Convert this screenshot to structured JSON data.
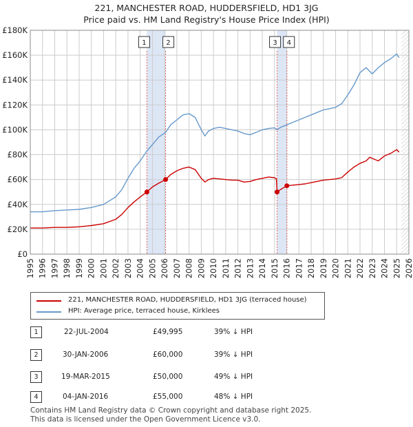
{
  "header": {
    "title_line1": "221, MANCHESTER ROAD, HUDDERSFIELD, HD1 3JG",
    "title_line2": "Price paid vs. HM Land Registry's House Price Index (HPI)"
  },
  "colors": {
    "property": "#cc0000",
    "hpi": "#6699cc",
    "shade": "#dde6f5",
    "marker_line": "#e06060",
    "grid": "#cccccc"
  },
  "chart_data": {
    "type": "line",
    "title": "Price paid vs. HM Land Registry's House Price Index (HPI)",
    "xlabel": "",
    "ylabel": "",
    "xlim": [
      1995,
      2026
    ],
    "ylim": [
      0,
      180000
    ],
    "grid": true,
    "x_ticks": [
      1995,
      1996,
      1997,
      1998,
      1999,
      2000,
      2001,
      2002,
      2003,
      2004,
      2005,
      2006,
      2007,
      2008,
      2009,
      2010,
      2011,
      2012,
      2013,
      2014,
      2015,
      2016,
      2017,
      2018,
      2019,
      2020,
      2021,
      2022,
      2023,
      2024,
      2025,
      2026
    ],
    "y_ticks": [
      {
        "value": 0,
        "label": "£0"
      },
      {
        "value": 20000,
        "label": "£20K"
      },
      {
        "value": 40000,
        "label": "£40K"
      },
      {
        "value": 60000,
        "label": "£60K"
      },
      {
        "value": 80000,
        "label": "£80K"
      },
      {
        "value": 100000,
        "label": "£100K"
      },
      {
        "value": 120000,
        "label": "£120K"
      },
      {
        "value": 140000,
        "label": "£140K"
      },
      {
        "value": 160000,
        "label": "£160K"
      },
      {
        "value": 180000,
        "label": "£180K"
      }
    ],
    "shaded_ranges": [
      [
        2004.55,
        2006.08
      ],
      [
        2015.21,
        2016.01
      ]
    ],
    "future_hatch_from": 2025.4,
    "series": [
      {
        "name": "221, MANCHESTER ROAD, HUDDERSFIELD, HD1 3JG (terraced house)",
        "x": [
          1995.0,
          1996.0,
          1997.0,
          1998.0,
          1999.0,
          2000.0,
          2001.0,
          2002.0,
          2002.5,
          2003.0,
          2003.5,
          2004.0,
          2004.55,
          2005.0,
          2005.5,
          2006.08,
          2006.5,
          2007.0,
          2007.5,
          2008.0,
          2008.5,
          2009.0,
          2009.3,
          2009.6,
          2010.0,
          2010.5,
          2011.0,
          2011.5,
          2012.0,
          2012.5,
          2013.0,
          2013.5,
          2014.0,
          2014.5,
          2015.0,
          2015.15,
          2015.21,
          2015.5,
          2016.01,
          2016.5,
          2017.0,
          2017.5,
          2018.0,
          2018.5,
          2019.0,
          2019.5,
          2020.0,
          2020.5,
          2021.0,
          2021.5,
          2022.0,
          2022.5,
          2022.8,
          2023.0,
          2023.5,
          2024.0,
          2024.5,
          2025.0,
          2025.2
        ],
        "y": [
          21000,
          21000,
          21500,
          21500,
          22000,
          23000,
          24500,
          28000,
          32000,
          37500,
          42000,
          46000,
          49995,
          54000,
          57000,
          60000,
          64000,
          67000,
          69000,
          70000,
          68000,
          61000,
          58000,
          60000,
          61000,
          60500,
          60000,
          59500,
          59500,
          58000,
          58500,
          60000,
          61000,
          62000,
          61500,
          60500,
          50000,
          52000,
          55000,
          55500,
          56000,
          56500,
          57500,
          58500,
          59500,
          60000,
          60500,
          61500,
          66000,
          70000,
          73000,
          75000,
          78000,
          77000,
          75000,
          79000,
          81000,
          84000,
          82000
        ]
      },
      {
        "name": "HPI: Average price, terraced house, Kirklees",
        "x": [
          1995.0,
          1996.0,
          1997.0,
          1998.0,
          1999.0,
          2000.0,
          2001.0,
          2002.0,
          2002.5,
          2003.0,
          2003.5,
          2004.0,
          2004.55,
          2005.0,
          2005.5,
          2006.08,
          2006.5,
          2007.0,
          2007.5,
          2008.0,
          2008.5,
          2009.0,
          2009.3,
          2009.6,
          2010.0,
          2010.5,
          2011.0,
          2011.5,
          2012.0,
          2012.5,
          2013.0,
          2013.5,
          2014.0,
          2014.5,
          2015.0,
          2015.21,
          2015.5,
          2016.01,
          2016.5,
          2017.0,
          2017.5,
          2018.0,
          2018.5,
          2019.0,
          2019.5,
          2020.0,
          2020.5,
          2021.0,
          2021.5,
          2022.0,
          2022.5,
          2022.8,
          2023.0,
          2023.5,
          2024.0,
          2024.5,
          2025.0,
          2025.2
        ],
        "y": [
          34000,
          34000,
          35000,
          35500,
          36000,
          37500,
          40000,
          46000,
          52000,
          61000,
          69000,
          75000,
          83000,
          88000,
          94000,
          98000,
          104000,
          108000,
          112000,
          113000,
          110000,
          100000,
          95000,
          99000,
          101000,
          102000,
          101000,
          100000,
          99000,
          97000,
          96000,
          98000,
          100000,
          101000,
          101500,
          100000,
          102000,
          104000,
          106000,
          108000,
          110000,
          112000,
          114000,
          116000,
          117000,
          118000,
          121000,
          128000,
          136000,
          146000,
          150000,
          147000,
          145000,
          150000,
          154000,
          157000,
          161000,
          158000
        ]
      }
    ],
    "sales": [
      {
        "num": "1",
        "x": 2004.55,
        "y": 49995
      },
      {
        "num": "2",
        "x": 2006.08,
        "y": 60000
      },
      {
        "num": "3",
        "x": 2015.21,
        "y": 50000
      },
      {
        "num": "4",
        "x": 2016.01,
        "y": 55000
      }
    ]
  },
  "legend": {
    "property": "221, MANCHESTER ROAD, HUDDERSFIELD, HD1 3JG (terraced house)",
    "hpi": "HPI: Average price, terraced house, Kirklees"
  },
  "sales_table": [
    {
      "num": "1",
      "date": "22-JUL-2004",
      "price": "£49,995",
      "hpi": "39% ↓ HPI"
    },
    {
      "num": "2",
      "date": "30-JAN-2006",
      "price": "£60,000",
      "hpi": "39% ↓ HPI"
    },
    {
      "num": "3",
      "date": "19-MAR-2015",
      "price": "£50,000",
      "hpi": "49% ↓ HPI"
    },
    {
      "num": "4",
      "date": "04-JAN-2016",
      "price": "£55,000",
      "hpi": "48% ↓ HPI"
    }
  ],
  "footer": {
    "line1": "Contains HM Land Registry data © Crown copyright and database right 2025.",
    "line2": "This data is licensed under the Open Government Licence v3.0."
  }
}
